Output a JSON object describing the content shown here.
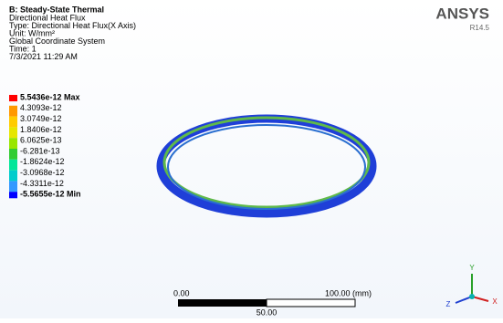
{
  "header": {
    "title": "B: Steady-State Thermal",
    "lines": [
      "Directional Heat Flux",
      "Type: Directional Heat Flux(X Axis)",
      "Unit: W/mm²",
      "Global Coordinate System",
      "Time: 1",
      "7/3/2021 11:29 AM"
    ]
  },
  "logo": {
    "name": "ANSYS",
    "version": "R14.5"
  },
  "legend": {
    "labels": [
      "5.5436e-12 Max",
      "4.3093e-12",
      "3.0749e-12",
      "1.8406e-12",
      "6.0625e-13",
      "-6.281e-13",
      "-1.8624e-12",
      "-3.0968e-12",
      "-4.3311e-12",
      "-5.5655e-12 Min"
    ],
    "colors": [
      "#ff0000",
      "#ff9900",
      "#ffcc00",
      "#e6e600",
      "#99e600",
      "#33cc33",
      "#00e699",
      "#00cccc",
      "#3399ff",
      "#0000ff"
    ]
  },
  "scale_bar": {
    "start": "0.00",
    "end": "100.00 (mm)",
    "mid": "50.00"
  },
  "triad": {
    "x": "X",
    "y": "Y",
    "z": "Z"
  }
}
